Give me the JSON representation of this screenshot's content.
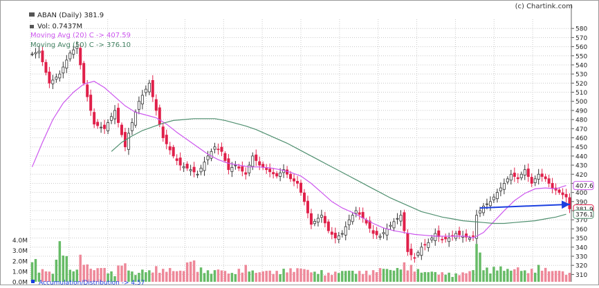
{
  "watermark": "(c) Chartink.com",
  "legend": {
    "title": "ABAN (Daily) 381.9",
    "vol": "Vol: 0.7437M",
    "ma20": "Moving Avg (20) C -> 407.59",
    "ma50": "Moving Avg (50) C -> 376.10",
    "adl": "Accumulation/Distribution -> 4.57"
  },
  "colors": {
    "up_candle": "#333333",
    "down_candle": "#e0204a",
    "ma20": "#cc55ee",
    "ma50": "#4f8f6f",
    "vol_up": "#66bb66",
    "vol_down": "#ee8899",
    "trendline": "#1a3fe0",
    "grid": "#c8c8c8"
  },
  "chart_data": {
    "type": "candlestick",
    "price_axis": {
      "ticks": [
        "310",
        "320",
        "330",
        "340",
        "350",
        "360",
        "370",
        "380",
        "390",
        "400",
        "410",
        "420",
        "430",
        "440",
        "450",
        "460",
        "470",
        "480",
        "490",
        "500",
        "510",
        "520",
        "530",
        "540",
        "550",
        "560",
        "570",
        "580"
      ],
      "range": [
        305,
        590
      ]
    },
    "volume_axis": {
      "ticks": [
        "0.0M",
        "1.0M",
        "2.0M",
        "3.0M",
        "4.0M"
      ],
      "range": [
        0,
        4.5
      ]
    },
    "last_labels": {
      "ma20": "407.6",
      "close": "381.9",
      "ma50": "376.1"
    },
    "price_path": [
      [
        0,
        552
      ],
      [
        2,
        555
      ],
      [
        5,
        520
      ],
      [
        8,
        530
      ],
      [
        11,
        553
      ],
      [
        13,
        560
      ],
      [
        15,
        520
      ],
      [
        18,
        475
      ],
      [
        21,
        470
      ],
      [
        24,
        490
      ],
      [
        27,
        450
      ],
      [
        28,
        465
      ],
      [
        31,
        500
      ],
      [
        34,
        520
      ],
      [
        36,
        490
      ],
      [
        38,
        460
      ],
      [
        41,
        440
      ],
      [
        43,
        430
      ],
      [
        46,
        425
      ],
      [
        48,
        420
      ],
      [
        51,
        440
      ],
      [
        53,
        450
      ],
      [
        55,
        445
      ],
      [
        57,
        425
      ],
      [
        59,
        430
      ],
      [
        62,
        420
      ],
      [
        64,
        440
      ],
      [
        66,
        430
      ],
      [
        68,
        425
      ],
      [
        71,
        418
      ],
      [
        73,
        425
      ],
      [
        75,
        415
      ],
      [
        77,
        410
      ],
      [
        79,
        390
      ],
      [
        81,
        365
      ],
      [
        84,
        375
      ],
      [
        86,
        358
      ],
      [
        88,
        350
      ],
      [
        90,
        355
      ],
      [
        92,
        370
      ],
      [
        94,
        380
      ],
      [
        96,
        372
      ],
      [
        99,
        355
      ],
      [
        101,
        352
      ],
      [
        103,
        360
      ],
      [
        105,
        368
      ],
      [
        107,
        375
      ],
      [
        108,
        358
      ],
      [
        109,
        335
      ],
      [
        111,
        328
      ],
      [
        113,
        340
      ],
      [
        115,
        345
      ],
      [
        117,
        355
      ],
      [
        119,
        348
      ],
      [
        121,
        350
      ],
      [
        123,
        355
      ],
      [
        125,
        352
      ],
      [
        127,
        350
      ],
      [
        128,
        352
      ],
      [
        129,
        375
      ],
      [
        130,
        380
      ],
      [
        131,
        385
      ],
      [
        133,
        390
      ],
      [
        135,
        400
      ],
      [
        137,
        410
      ],
      [
        139,
        420
      ],
      [
        141,
        415
      ],
      [
        143,
        425
      ],
      [
        145,
        410
      ],
      [
        147,
        420
      ],
      [
        149,
        415
      ],
      [
        151,
        405
      ],
      [
        153,
        400
      ],
      [
        155,
        395
      ],
      [
        156,
        382
      ]
    ],
    "ma20": [
      [
        0,
        428
      ],
      [
        3,
        455
      ],
      [
        6,
        480
      ],
      [
        9,
        498
      ],
      [
        12,
        510
      ],
      [
        15,
        519
      ],
      [
        18,
        522
      ],
      [
        21,
        515
      ],
      [
        24,
        505
      ],
      [
        27,
        495
      ],
      [
        30,
        488
      ],
      [
        33,
        485
      ],
      [
        36,
        482
      ],
      [
        39,
        475
      ],
      [
        42,
        466
      ],
      [
        45,
        458
      ],
      [
        48,
        450
      ],
      [
        51,
        442
      ],
      [
        54,
        436
      ],
      [
        57,
        432
      ],
      [
        60,
        430
      ],
      [
        63,
        428
      ],
      [
        66,
        428
      ],
      [
        69,
        427
      ],
      [
        72,
        425
      ],
      [
        75,
        422
      ],
      [
        78,
        418
      ],
      [
        81,
        410
      ],
      [
        84,
        400
      ],
      [
        87,
        390
      ],
      [
        90,
        383
      ],
      [
        93,
        378
      ],
      [
        96,
        372
      ],
      [
        99,
        366
      ],
      [
        102,
        361
      ],
      [
        105,
        358
      ],
      [
        108,
        356
      ],
      [
        111,
        354
      ],
      [
        114,
        353
      ],
      [
        117,
        352
      ],
      [
        120,
        352
      ],
      [
        123,
        352
      ],
      [
        126,
        352
      ],
      [
        128,
        350
      ],
      [
        131,
        356
      ],
      [
        134,
        368
      ],
      [
        137,
        380
      ],
      [
        140,
        391
      ],
      [
        143,
        399
      ],
      [
        146,
        404
      ],
      [
        149,
        405
      ],
      [
        152,
        404
      ],
      [
        155,
        407.6
      ]
    ],
    "ma50": [
      [
        23,
        445
      ],
      [
        26,
        455
      ],
      [
        29,
        462
      ],
      [
        32,
        468
      ],
      [
        35,
        472
      ],
      [
        38,
        476
      ],
      [
        41,
        479
      ],
      [
        44,
        480
      ],
      [
        47,
        481
      ],
      [
        50,
        481
      ],
      [
        53,
        481
      ],
      [
        56,
        479
      ],
      [
        59,
        476
      ],
      [
        62,
        473
      ],
      [
        65,
        469
      ],
      [
        68,
        464
      ],
      [
        71,
        459
      ],
      [
        74,
        454
      ],
      [
        77,
        448
      ],
      [
        80,
        442
      ],
      [
        83,
        436
      ],
      [
        86,
        430
      ],
      [
        89,
        424
      ],
      [
        92,
        418
      ],
      [
        95,
        412
      ],
      [
        98,
        406
      ],
      [
        101,
        400
      ],
      [
        104,
        394
      ],
      [
        107,
        389
      ],
      [
        110,
        384
      ],
      [
        113,
        379
      ],
      [
        116,
        376
      ],
      [
        119,
        373
      ],
      [
        122,
        371
      ],
      [
        125,
        369
      ],
      [
        128,
        368
      ],
      [
        131,
        367
      ],
      [
        134,
        366
      ],
      [
        137,
        366
      ],
      [
        140,
        367
      ],
      [
        143,
        368
      ],
      [
        146,
        369
      ],
      [
        149,
        371
      ],
      [
        152,
        373
      ],
      [
        155,
        376.1
      ]
    ],
    "volume": [
      [
        0,
        2.5
      ],
      [
        2,
        1.0
      ],
      [
        4,
        1.0
      ],
      [
        6,
        0.7
      ],
      [
        8,
        3.3
      ],
      [
        10,
        2.0
      ],
      [
        12,
        0.8
      ],
      [
        14,
        2.1
      ],
      [
        16,
        1.4
      ],
      [
        18,
        1.0
      ],
      [
        20,
        1.3
      ],
      [
        22,
        0.9
      ],
      [
        24,
        0.7
      ],
      [
        26,
        1.8
      ],
      [
        28,
        1.1
      ],
      [
        30,
        0.6
      ],
      [
        32,
        1.0
      ],
      [
        34,
        0.9
      ],
      [
        36,
        1.2
      ],
      [
        38,
        1.0
      ],
      [
        40,
        1.1
      ],
      [
        42,
        0.9
      ],
      [
        44,
        1.0
      ],
      [
        46,
        2.1
      ],
      [
        48,
        1.2
      ],
      [
        50,
        1.0
      ],
      [
        52,
        0.8
      ],
      [
        54,
        1.1
      ],
      [
        56,
        0.9
      ],
      [
        58,
        0.7
      ],
      [
        60,
        1.0
      ],
      [
        62,
        1.3
      ],
      [
        64,
        0.9
      ],
      [
        66,
        0.8
      ],
      [
        68,
        1.0
      ],
      [
        70,
        0.8
      ],
      [
        72,
        0.9
      ],
      [
        74,
        1.1
      ],
      [
        76,
        1.0
      ],
      [
        78,
        1.2
      ],
      [
        80,
        1.0
      ],
      [
        82,
        0.8
      ],
      [
        84,
        0.9
      ],
      [
        86,
        0.7
      ],
      [
        88,
        0.8
      ],
      [
        90,
        0.9
      ],
      [
        92,
        1.0
      ],
      [
        94,
        0.8
      ],
      [
        96,
        0.9
      ],
      [
        98,
        0.8
      ],
      [
        100,
        1.0
      ],
      [
        102,
        1.2
      ],
      [
        104,
        1.0
      ],
      [
        106,
        1.1
      ],
      [
        108,
        1.5
      ],
      [
        110,
        1.3
      ],
      [
        112,
        1.0
      ],
      [
        114,
        0.8
      ],
      [
        116,
        0.9
      ],
      [
        118,
        0.7
      ],
      [
        120,
        0.8
      ],
      [
        122,
        0.6
      ],
      [
        124,
        0.7
      ],
      [
        126,
        0.8
      ],
      [
        128,
        1.0
      ],
      [
        129,
        3.5
      ],
      [
        131,
        1.2
      ],
      [
        133,
        1.0
      ],
      [
        135,
        1.3
      ],
      [
        137,
        1.1
      ],
      [
        139,
        1.0
      ],
      [
        141,
        1.2
      ],
      [
        143,
        0.9
      ],
      [
        145,
        1.0
      ],
      [
        147,
        1.3
      ],
      [
        149,
        1.1
      ],
      [
        151,
        0.9
      ],
      [
        153,
        1.0
      ],
      [
        155,
        0.7
      ]
    ]
  }
}
